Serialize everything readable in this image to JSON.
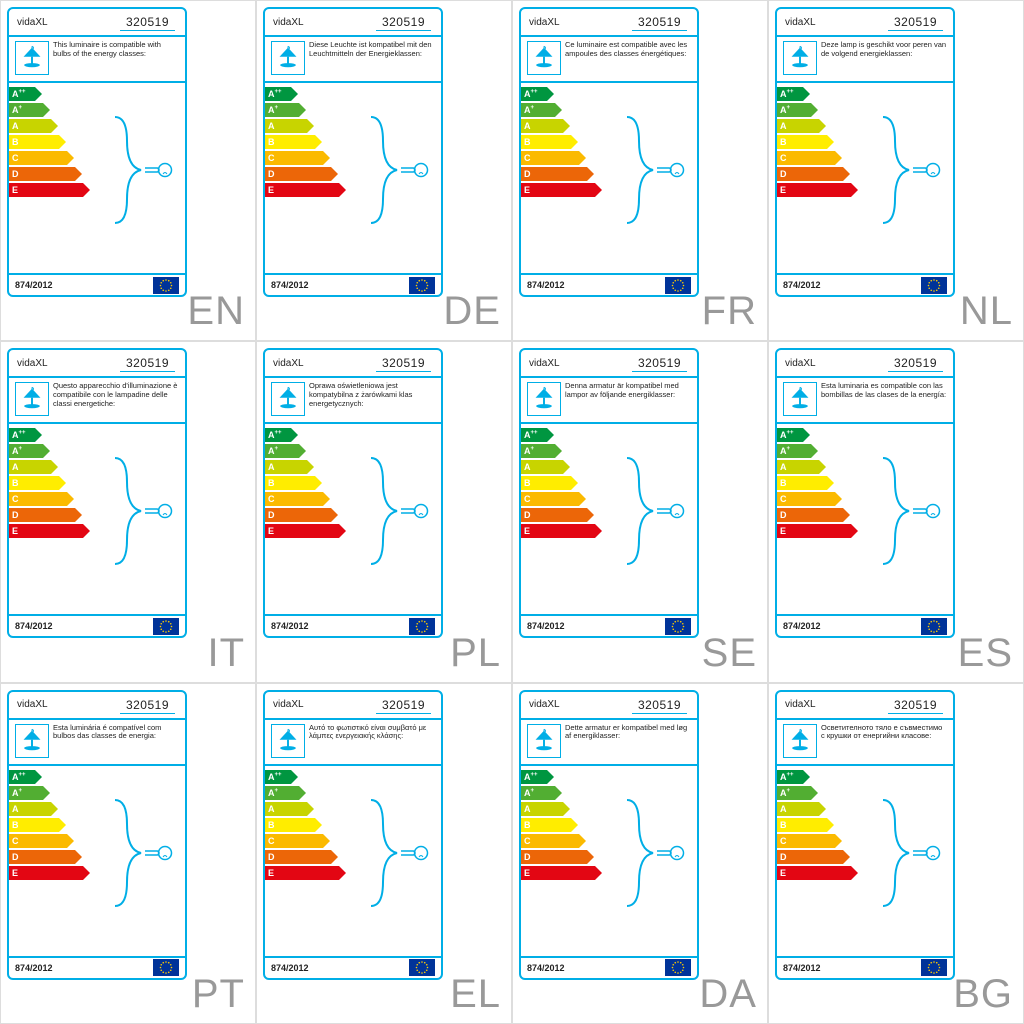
{
  "brand": "vidaXL",
  "product_id": "320519",
  "regulation": "874/2012",
  "border_color": "#00aee6",
  "lang_text_color": "#999999",
  "cell_border_color": "#dddddd",
  "energy_classes": [
    {
      "label": "A",
      "sup": "++",
      "color": "#009640",
      "width": 26
    },
    {
      "label": "A",
      "sup": "+",
      "color": "#52ae32",
      "width": 34
    },
    {
      "label": "A",
      "sup": "",
      "color": "#c8d400",
      "width": 42
    },
    {
      "label": "B",
      "sup": "",
      "color": "#ffed00",
      "width": 50
    },
    {
      "label": "C",
      "sup": "",
      "color": "#fbba00",
      "width": 58
    },
    {
      "label": "D",
      "sup": "",
      "color": "#ec6608",
      "width": 66
    },
    {
      "label": "E",
      "sup": "",
      "color": "#e30613",
      "width": 74
    }
  ],
  "cells": [
    {
      "lang": "EN",
      "desc": "This luminaire is compatible with bulbs of the energy classes:"
    },
    {
      "lang": "DE",
      "desc": "Diese Leuchte ist kompatibel mit den Leuchtmitteln der Energieklassen:"
    },
    {
      "lang": "FR",
      "desc": "Ce luminaire est compatible avec les ampoules des classes énergétiques:"
    },
    {
      "lang": "NL",
      "desc": "Deze lamp is geschikt voor peren van de volgend energieklassen:"
    },
    {
      "lang": "IT",
      "desc": "Questo apparecchio d'illuminazione è compatibile con le lampadine delle classi energetiche:"
    },
    {
      "lang": "PL",
      "desc": "Oprawa oświetleniowa jest kompatybilna z żarówkami klas energetycznych:"
    },
    {
      "lang": "SE",
      "desc": "Denna armatur är kompatibel med lampor av följande energiklasser:"
    },
    {
      "lang": "ES",
      "desc": "Esta luminaria es compatible con las bombillas de las clases de la energía:"
    },
    {
      "lang": "PT",
      "desc": "Esta luminária é compatível com bulbos das classes de energia:"
    },
    {
      "lang": "EL",
      "desc": "Αυτό το φωτιστικό είναι συμβατό με λάμπες ενεργειακής κλάσης:"
    },
    {
      "lang": "DA",
      "desc": "Dette armatur er kompatibel med løg af energiklasser:"
    },
    {
      "lang": "BG",
      "desc": "Осветителното тяло е съвместимо с крушки от енергийни класове:"
    }
  ]
}
